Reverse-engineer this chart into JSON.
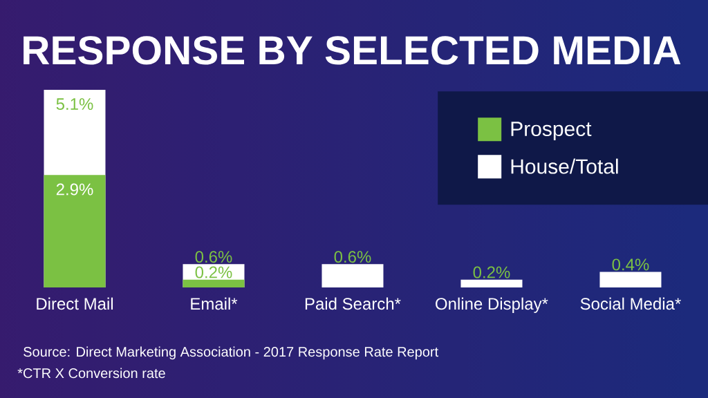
{
  "chart_data": {
    "type": "bar",
    "title": "RESPONSE BY SELECTED MEDIA",
    "categories": [
      "Direct Mail",
      "Email*",
      "Paid Search*",
      "Online Display*",
      "Social Media*"
    ],
    "series": [
      {
        "name": "Prospect",
        "color": "#7bc143",
        "values": [
          2.9,
          0.2,
          null,
          null,
          null
        ],
        "value_labels": [
          "2.9%",
          "0.2%",
          null,
          null,
          null
        ]
      },
      {
        "name": "House/Total",
        "color": "#ffffff",
        "values": [
          5.1,
          0.6,
          0.6,
          0.2,
          0.4
        ],
        "value_labels": [
          "5.1%",
          "0.6%",
          "0.6%",
          "0.2%",
          "0.4%"
        ]
      }
    ],
    "legend": "top right",
    "annotations": [
      "Source: Direct Marketing Association - 2017 Response Rate Report",
      "*CTR X Conversion rate"
    ]
  }
}
